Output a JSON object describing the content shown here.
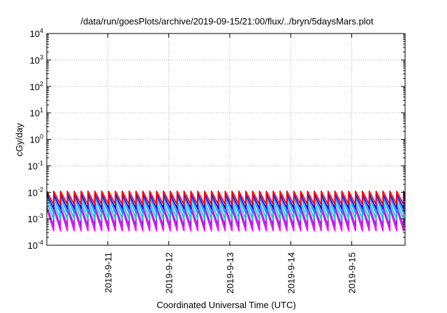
{
  "chart_data": {
    "type": "line",
    "title": "/data/run/goesPlots/archive/2019-09-15/21:00/flux/../bryn/5daysMars.plot",
    "xlabel": "Coordinated Universal Time (UTC)",
    "ylabel": "cGy/day",
    "yscale": "log",
    "ylim": [
      0.0001,
      10000
    ],
    "yticks": [
      {
        "base": "10",
        "exp": "-4"
      },
      {
        "base": "10",
        "exp": "-3"
      },
      {
        "base": "10",
        "exp": "-2"
      },
      {
        "base": "10",
        "exp": "-1"
      },
      {
        "base": "10",
        "exp": "0"
      },
      {
        "base": "10",
        "exp": "1"
      },
      {
        "base": "10",
        "exp": "2"
      },
      {
        "base": "10",
        "exp": "3"
      },
      {
        "base": "10",
        "exp": "4"
      }
    ],
    "xlim": [
      "2019-09-10 00:00",
      "2019-09-15 21:00"
    ],
    "xticks": [
      "2019-9-11",
      "2019-9-12",
      "2019-9-13",
      "2019-9-14",
      "2019-9-15"
    ],
    "grid": true,
    "legend": "none",
    "sawtooth": {
      "period_hours": 2.7,
      "step_hours": 0.25,
      "description_free": true
    },
    "series": [
      {
        "color": "#ff00ff",
        "peak": 0.0024,
        "decay": 0.16
      },
      {
        "color": "#8a2be2",
        "peak": 0.003,
        "decay": 0.19
      },
      {
        "color": "#00ced1",
        "peak": 0.0045,
        "decay": 0.23
      },
      {
        "color": "#1e90ff",
        "peak": 0.0065,
        "decay": 0.27
      },
      {
        "color": "#0000ff",
        "peak": 0.0085,
        "decay": 0.3
      },
      {
        "color": "#ff0000",
        "peak": 0.011,
        "decay": 0.33
      }
    ]
  }
}
